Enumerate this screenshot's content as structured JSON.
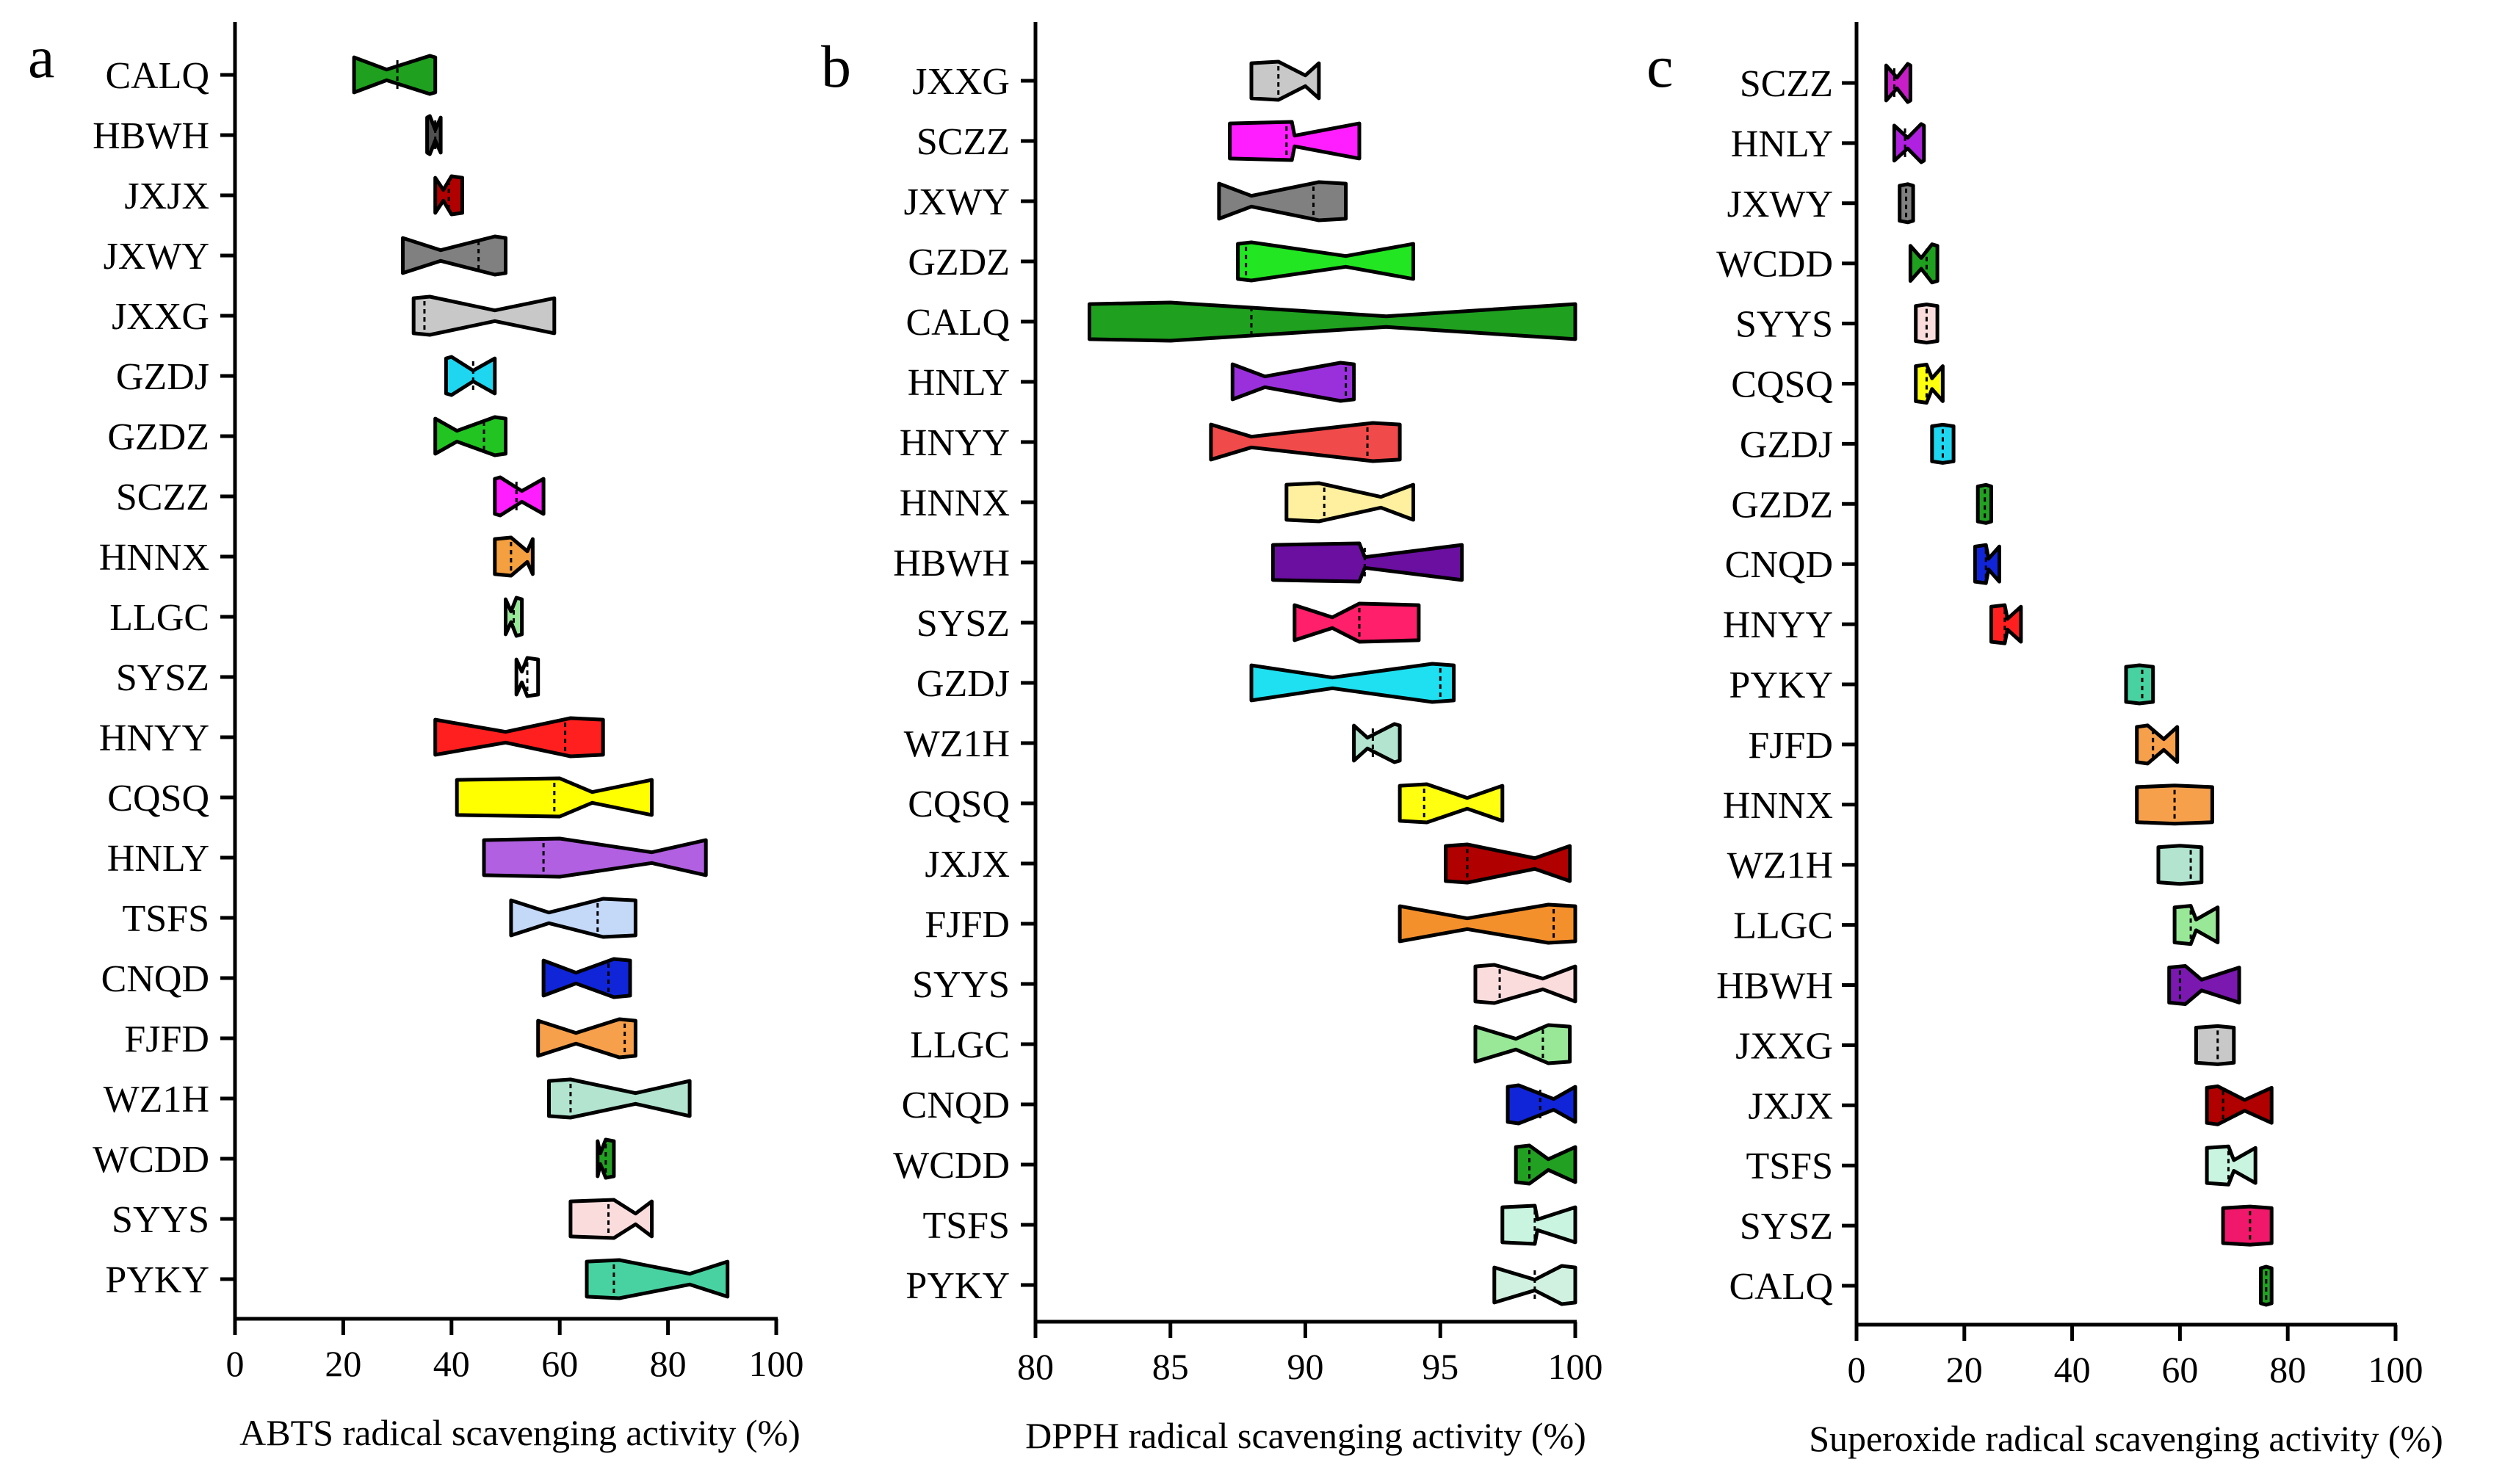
{
  "chart_data": [
    {
      "panel": "a",
      "type": "violin",
      "xlabel": "ABTS radical scavenging activity (%)",
      "xlim": [
        0,
        100
      ],
      "xticks": [
        0,
        20,
        40,
        60,
        80,
        100
      ],
      "categories": [
        "CALQ",
        "HBWH",
        "JXJX",
        "JXWY",
        "JXXG",
        "GZDJ",
        "GZDZ",
        "SCZZ",
        "HNNX",
        "LLGC",
        "SYSZ",
        "HNYY",
        "CQSQ",
        "HNLY",
        "TSFS",
        "CNQD",
        "FJFD",
        "WZ1H",
        "WCDD",
        "SYYS",
        "PYKY"
      ],
      "series": [
        {
          "name": "CALQ",
          "min": 22,
          "max": 37,
          "median": 30,
          "peak": 36,
          "waist": 28,
          "color": "#1fa01f"
        },
        {
          "name": "HBWH",
          "min": 35.5,
          "max": 38,
          "median": 37,
          "peak": 36,
          "waist": 37,
          "color": "#505050"
        },
        {
          "name": "JXJX",
          "min": 37,
          "max": 42,
          "median": 39.5,
          "peak": 40,
          "waist": 38.5,
          "color": "#b00000"
        },
        {
          "name": "JXWY",
          "min": 31,
          "max": 50,
          "median": 45,
          "peak": 48,
          "waist": 38,
          "color": "#808080"
        },
        {
          "name": "JXXG",
          "min": 33,
          "max": 59,
          "median": 35,
          "peak": 36,
          "waist": 48,
          "color": "#c8c8c8"
        },
        {
          "name": "GZDJ",
          "min": 39,
          "max": 48,
          "median": 44,
          "peak": 40,
          "waist": 44,
          "color": "#1ed6f0"
        },
        {
          "name": "GZDZ",
          "min": 37,
          "max": 50,
          "median": 46,
          "peak": 48,
          "waist": 41,
          "color": "#22c422"
        },
        {
          "name": "SCZZ",
          "min": 48,
          "max": 57,
          "median": 52,
          "peak": 49,
          "waist": 53,
          "color": "#ff1eff"
        },
        {
          "name": "HNNX",
          "min": 48,
          "max": 55,
          "median": 51,
          "peak": 51,
          "waist": 54,
          "color": "#f4a040"
        },
        {
          "name": "LLGC",
          "min": 50,
          "max": 53,
          "median": 51.5,
          "peak": 52,
          "waist": 51,
          "color": "#98e898"
        },
        {
          "name": "SYSZ",
          "min": 52,
          "max": 56,
          "median": 54,
          "peak": 54,
          "waist": 53,
          "color": "#ffffff"
        },
        {
          "name": "HNYY",
          "min": 37,
          "max": 68,
          "median": 61,
          "peak": 62,
          "waist": 50,
          "color": "#ff1f1f"
        },
        {
          "name": "CQSQ",
          "min": 41,
          "max": 77,
          "median": 59,
          "peak": 60,
          "waist": 66,
          "color": "#ffff00"
        },
        {
          "name": "HNLY",
          "min": 46,
          "max": 87,
          "median": 57,
          "peak": 60,
          "waist": 77,
          "color": "#b060e0"
        },
        {
          "name": "TSFS",
          "min": 51,
          "max": 74,
          "median": 67,
          "peak": 68,
          "waist": 58,
          "color": "#c4d8f8"
        },
        {
          "name": "CNQD",
          "min": 57,
          "max": 73,
          "median": 69,
          "peak": 70,
          "waist": 63,
          "color": "#1025d8"
        },
        {
          "name": "FJFD",
          "min": 56,
          "max": 74,
          "median": 72,
          "peak": 71,
          "waist": 63,
          "color": "#f7a04c"
        },
        {
          "name": "WZ1H",
          "min": 58,
          "max": 84,
          "median": 62,
          "peak": 62,
          "waist": 74,
          "color": "#b2e4d0"
        },
        {
          "name": "WCDD",
          "min": 67,
          "max": 70,
          "median": 68.5,
          "peak": 68.5,
          "waist": 67.5,
          "color": "#22a022"
        },
        {
          "name": "SYYS",
          "min": 62,
          "max": 77,
          "median": 69,
          "peak": 70,
          "waist": 74,
          "color": "#fbdcdc"
        },
        {
          "name": "PYKY",
          "min": 65,
          "max": 91,
          "median": 70,
          "peak": 71,
          "waist": 84,
          "color": "#48d2a2"
        }
      ]
    },
    {
      "panel": "b",
      "type": "violin",
      "xlabel": "DPPH radical scavenging activity (%)",
      "xlim": [
        80,
        100
      ],
      "xticks": [
        80,
        85,
        90,
        95,
        100
      ],
      "categories": [
        "JXXG",
        "SCZZ",
        "JXWY",
        "GZDZ",
        "CALQ",
        "HNLY",
        "HNYY",
        "HNNX",
        "HBWH",
        "SYSZ",
        "GZDJ",
        "WZ1H",
        "CQSQ",
        "JXJX",
        "FJFD",
        "SYYS",
        "LLGC",
        "CNQD",
        "WCDD",
        "TSFS",
        "PYKY"
      ],
      "series": [
        {
          "name": "JXXG",
          "min": 88,
          "max": 90.5,
          "median": 89,
          "peak": 89,
          "waist": 90,
          "color": "#c8c8c8"
        },
        {
          "name": "SCZZ",
          "min": 87.2,
          "max": 92,
          "median": 89.3,
          "peak": 89.5,
          "waist": 89.6,
          "color": "#ff1eff"
        },
        {
          "name": "JXWY",
          "min": 86.8,
          "max": 91.5,
          "median": 90.3,
          "peak": 90.5,
          "waist": 88,
          "color": "#808080"
        },
        {
          "name": "GZDZ",
          "min": 87.5,
          "max": 94,
          "median": 87.8,
          "peak": 88,
          "waist": 91.5,
          "color": "#22e622"
        },
        {
          "name": "CALQ",
          "min": 82,
          "max": 100,
          "median": 88,
          "peak": 85,
          "waist": 93,
          "color": "#1fa01f"
        },
        {
          "name": "HNLY",
          "min": 87.3,
          "max": 91.8,
          "median": 91.5,
          "peak": 91.3,
          "waist": 88.5,
          "color": "#9a30dc"
        },
        {
          "name": "HNYY",
          "min": 86.5,
          "max": 93.5,
          "median": 92.3,
          "peak": 92.5,
          "waist": 88,
          "color": "#f04a4a"
        },
        {
          "name": "HNNX",
          "min": 89.3,
          "max": 94,
          "median": 90.7,
          "peak": 90.5,
          "waist": 92.8,
          "color": "#fff0a0"
        },
        {
          "name": "HBWH",
          "min": 88.8,
          "max": 95.8,
          "median": 92.2,
          "peak": 92,
          "waist": 92.2,
          "color": "#6a0fa0"
        },
        {
          "name": "SYSZ",
          "min": 89.6,
          "max": 94.2,
          "median": 92,
          "peak": 92,
          "waist": 91,
          "color": "#ff1f6a"
        },
        {
          "name": "GZDJ",
          "min": 88,
          "max": 95.5,
          "median": 95,
          "peak": 94.7,
          "waist": 91,
          "color": "#1fe0f0"
        },
        {
          "name": "WZ1H",
          "min": 91.8,
          "max": 93.5,
          "median": 92.5,
          "peak": 93.3,
          "waist": 92.3,
          "color": "#b2e4d0"
        },
        {
          "name": "CQSQ",
          "min": 93.5,
          "max": 97.3,
          "median": 94.4,
          "peak": 94.5,
          "waist": 96,
          "color": "#ffff10"
        },
        {
          "name": "JXJX",
          "min": 95.2,
          "max": 99.8,
          "median": 96,
          "peak": 96,
          "waist": 98.5,
          "color": "#b00000"
        },
        {
          "name": "FJFD",
          "min": 93.5,
          "max": 100,
          "median": 99.2,
          "peak": 99,
          "waist": 96,
          "color": "#f4902c"
        },
        {
          "name": "SYYS",
          "min": 96.3,
          "max": 100,
          "median": 97.2,
          "peak": 97,
          "waist": 98.8,
          "color": "#fbdcdc"
        },
        {
          "name": "LLGC",
          "min": 96.3,
          "max": 99.8,
          "median": 98.8,
          "peak": 99,
          "waist": 97.8,
          "color": "#98e898"
        },
        {
          "name": "CNQD",
          "min": 97.5,
          "max": 100,
          "median": 98.7,
          "peak": 97.9,
          "waist": 99.2,
          "color": "#1025d8"
        },
        {
          "name": "WCDD",
          "min": 97.8,
          "max": 100,
          "median": 98.3,
          "peak": 98.3,
          "waist": 99,
          "color": "#22a022"
        },
        {
          "name": "TSFS",
          "min": 97.3,
          "max": 100,
          "median": 98.5,
          "peak": 98.5,
          "waist": 98.6,
          "color": "#c8f4e0"
        },
        {
          "name": "PYKY",
          "min": 97,
          "max": 100,
          "median": 98.5,
          "peak": 99.5,
          "waist": 98.5,
          "color": "#d0f0e0"
        }
      ]
    },
    {
      "panel": "c",
      "type": "violin",
      "xlabel": "Superoxide radical scavenging activity (%)",
      "xlim": [
        0,
        100
      ],
      "xticks": [
        0,
        20,
        40,
        60,
        80,
        100
      ],
      "categories": [
        "SCZZ",
        "HNLY",
        "JXWY",
        "WCDD",
        "SYYS",
        "CQSQ",
        "GZDJ",
        "GZDZ",
        "CNQD",
        "HNYY",
        "PYKY",
        "FJFD",
        "HNNX",
        "WZ1H",
        "LLGC",
        "HBWH",
        "JXXG",
        "JXJX",
        "TSFS",
        "SYSZ",
        "CALQ"
      ],
      "series": [
        {
          "name": "SCZZ",
          "min": 5.5,
          "max": 10,
          "median": 7,
          "peak": 9.5,
          "waist": 7.5,
          "color": "#c81ec8"
        },
        {
          "name": "HNLY",
          "min": 7,
          "max": 12.5,
          "median": 9,
          "peak": 12,
          "waist": 9.5,
          "color": "#b020e0"
        },
        {
          "name": "JXWY",
          "min": 8,
          "max": 10.5,
          "median": 9.2,
          "peak": 9.5,
          "waist": 9.5,
          "color": "#808080"
        },
        {
          "name": "WCDD",
          "min": 10,
          "max": 15,
          "median": 13,
          "peak": 14,
          "waist": 12,
          "color": "#1fa01f"
        },
        {
          "name": "SYYS",
          "min": 11,
          "max": 15,
          "median": 13,
          "peak": 13,
          "waist": 13,
          "color": "#fbdcdc"
        },
        {
          "name": "CQSQ",
          "min": 11,
          "max": 16,
          "median": 13,
          "peak": 13,
          "waist": 14,
          "color": "#ffff10"
        },
        {
          "name": "GZDJ",
          "min": 14,
          "max": 18,
          "median": 16,
          "peak": 16,
          "waist": 16,
          "color": "#1ed6f0"
        },
        {
          "name": "GZDZ",
          "min": 22.5,
          "max": 25,
          "median": 23.8,
          "peak": 24,
          "waist": 24,
          "color": "#22a022"
        },
        {
          "name": "CNQD",
          "min": 22,
          "max": 26.5,
          "median": 24,
          "peak": 24,
          "waist": 24.5,
          "color": "#1025d8"
        },
        {
          "name": "HNYY",
          "min": 25,
          "max": 30.5,
          "median": 27.5,
          "peak": 27.5,
          "waist": 28,
          "color": "#ff1f1f"
        },
        {
          "name": "PYKY",
          "min": 50,
          "max": 55,
          "median": 53,
          "peak": 52.5,
          "waist": 52.5,
          "color": "#48d2a2"
        },
        {
          "name": "FJFD",
          "min": 52,
          "max": 59.5,
          "median": 55,
          "peak": 54,
          "waist": 57,
          "color": "#f7a04c"
        },
        {
          "name": "HNNX",
          "min": 52,
          "max": 66,
          "median": 59,
          "peak": 59,
          "waist": 59,
          "color": "#f7a04c"
        },
        {
          "name": "WZ1H",
          "min": 56,
          "max": 64,
          "median": 62,
          "peak": 60,
          "waist": 60,
          "color": "#b2e4d0"
        },
        {
          "name": "LLGC",
          "min": 59,
          "max": 67,
          "median": 62,
          "peak": 62,
          "waist": 63,
          "color": "#98e898"
        },
        {
          "name": "HBWH",
          "min": 58,
          "max": 71,
          "median": 60,
          "peak": 61,
          "waist": 64,
          "color": "#7a18b0"
        },
        {
          "name": "JXXG",
          "min": 63,
          "max": 70,
          "median": 67,
          "peak": 67,
          "waist": 67,
          "color": "#c8c8c8"
        },
        {
          "name": "JXJX",
          "min": 65,
          "max": 77,
          "median": 68,
          "peak": 67,
          "waist": 72,
          "color": "#b00000"
        },
        {
          "name": "TSFS",
          "min": 65,
          "max": 74,
          "median": 69,
          "peak": 69,
          "waist": 70,
          "color": "#c8f4e0"
        },
        {
          "name": "SYSZ",
          "min": 68,
          "max": 77,
          "median": 73,
          "peak": 73,
          "waist": 73,
          "color": "#f0186a"
        },
        {
          "name": "CALQ",
          "min": 75,
          "max": 77,
          "median": 76,
          "peak": 76,
          "waist": 76,
          "color": "#22a022"
        }
      ]
    }
  ]
}
